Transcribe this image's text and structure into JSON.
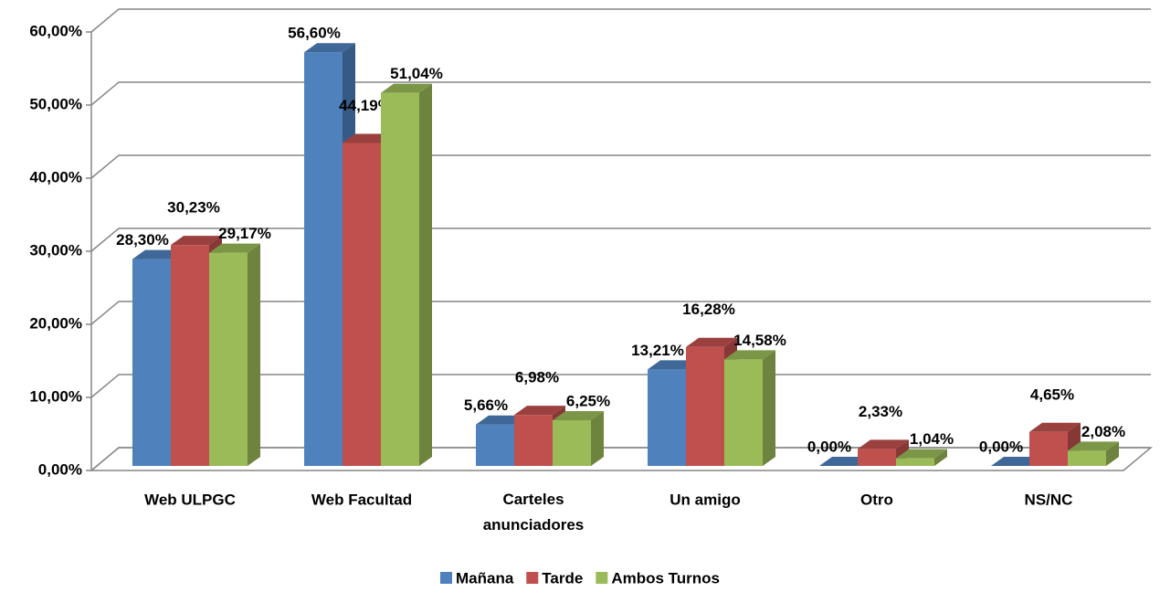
{
  "chart_data": {
    "type": "bar3d",
    "categories": [
      "Web ULPGC",
      "Web Facultad",
      "Carteles anunciadores",
      "Un amigo",
      "Otro",
      "NS/NC"
    ],
    "series": [
      {
        "name": "Mañana",
        "color": "#4f81bd",
        "values": [
          28.3,
          56.6,
          5.66,
          13.21,
          0,
          0
        ],
        "value_labels": [
          "28,30%",
          "56,60%",
          "5,66%",
          "13,21%",
          "0,00%",
          "0,00%"
        ]
      },
      {
        "name": "Tarde",
        "color": "#c0504d",
        "values": [
          30.23,
          44.19,
          6.98,
          16.28,
          2.33,
          4.65
        ],
        "value_labels": [
          "30,23%",
          "44,19%",
          "6,98%",
          "16,28%",
          "2,33%",
          "4,65%"
        ]
      },
      {
        "name": "Ambos Turnos",
        "color": "#9bbb59",
        "values": [
          29.17,
          51.04,
          6.25,
          14.58,
          1.04,
          2.08
        ],
        "value_labels": [
          "29,17%",
          "51,04%",
          "6,25%",
          "14,58%",
          "1,04%",
          "2,08%"
        ]
      }
    ],
    "ylim": [
      0,
      60
    ],
    "yticks": [
      {
        "value": 0,
        "label": "0,00%"
      },
      {
        "value": 10,
        "label": "10,00%"
      },
      {
        "value": 20,
        "label": "20,00%"
      },
      {
        "value": 30,
        "label": "30,00%"
      },
      {
        "value": 40,
        "label": "40,00%"
      },
      {
        "value": 50,
        "label": "50,00%"
      },
      {
        "value": 60,
        "label": "60,00%"
      }
    ],
    "grid": true,
    "legend": "bottom"
  }
}
